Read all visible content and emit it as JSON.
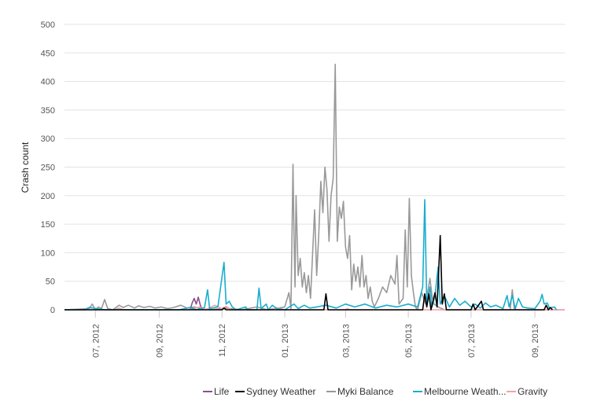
{
  "chart_data": {
    "type": "line",
    "title": "",
    "xlabel": "",
    "ylabel": "Crash count",
    "ylim": [
      0,
      500
    ],
    "y_ticks": [
      0,
      50,
      100,
      150,
      200,
      250,
      300,
      350,
      400,
      450,
      500
    ],
    "x_ticks": [
      "07, 2012",
      "09, 2012",
      "11, 2012",
      "01, 2013",
      "03, 2013",
      "05, 2013",
      "07, 2013",
      "09, 2013"
    ],
    "xlim": [
      "2012-06-01",
      "2013-09-30"
    ],
    "grid": "horizontal",
    "legend_position": "bottom-right",
    "series": [
      {
        "name": "Life",
        "color": "#8e4e8c",
        "points": [
          [
            "2012-10-01",
            0
          ],
          [
            "2012-10-03",
            12
          ],
          [
            "2012-10-05",
            20
          ],
          [
            "2012-10-07",
            10
          ],
          [
            "2012-10-09",
            22
          ],
          [
            "2012-10-11",
            8
          ],
          [
            "2012-10-13",
            0
          ]
        ]
      },
      {
        "name": "Sydney Weather",
        "color": "#000000",
        "points": [
          [
            "2012-06-01",
            0
          ],
          [
            "2012-11-01",
            0
          ],
          [
            "2012-11-03",
            3
          ],
          [
            "2012-11-05",
            0
          ],
          [
            "2013-02-08",
            0
          ],
          [
            "2013-02-10",
            28
          ],
          [
            "2013-02-12",
            0
          ],
          [
            "2013-05-15",
            0
          ],
          [
            "2013-05-17",
            28
          ],
          [
            "2013-05-19",
            5
          ],
          [
            "2013-05-21",
            28
          ],
          [
            "2013-05-23",
            0
          ],
          [
            "2013-05-27",
            30
          ],
          [
            "2013-05-29",
            5
          ],
          [
            "2013-06-01",
            130
          ],
          [
            "2013-06-03",
            10
          ],
          [
            "2013-06-05",
            28
          ],
          [
            "2013-06-07",
            0
          ],
          [
            "2013-07-01",
            0
          ],
          [
            "2013-07-03",
            10
          ],
          [
            "2013-07-05",
            0
          ],
          [
            "2013-07-11",
            15
          ],
          [
            "2013-07-13",
            0
          ],
          [
            "2013-09-10",
            0
          ],
          [
            "2013-09-12",
            8
          ],
          [
            "2013-09-14",
            0
          ],
          [
            "2013-09-16",
            4
          ],
          [
            "2013-09-18",
            0
          ]
        ]
      },
      {
        "name": "Myki Balance",
        "color": "#999999",
        "points": [
          [
            "2012-06-01",
            0
          ],
          [
            "2012-06-25",
            2
          ],
          [
            "2012-06-28",
            10
          ],
          [
            "2012-07-01",
            0
          ],
          [
            "2012-07-04",
            5
          ],
          [
            "2012-07-07",
            2
          ],
          [
            "2012-07-10",
            18
          ],
          [
            "2012-07-13",
            2
          ],
          [
            "2012-07-18",
            0
          ],
          [
            "2012-07-24",
            8
          ],
          [
            "2012-07-28",
            4
          ],
          [
            "2012-08-02",
            8
          ],
          [
            "2012-08-08",
            3
          ],
          [
            "2012-08-12",
            7
          ],
          [
            "2012-08-17",
            4
          ],
          [
            "2012-08-23",
            6
          ],
          [
            "2012-08-28",
            3
          ],
          [
            "2012-09-03",
            5
          ],
          [
            "2012-09-09",
            2
          ],
          [
            "2012-09-15",
            4
          ],
          [
            "2012-09-22",
            8
          ],
          [
            "2012-09-28",
            3
          ],
          [
            "2012-10-05",
            5
          ],
          [
            "2012-10-12",
            2
          ],
          [
            "2012-10-20",
            0
          ],
          [
            "2012-11-05",
            3
          ],
          [
            "2012-11-20",
            0
          ],
          [
            "2012-12-05",
            5
          ],
          [
            "2012-12-15",
            0
          ],
          [
            "2013-01-01",
            5
          ],
          [
            "2013-01-05",
            30
          ],
          [
            "2013-01-07",
            2
          ],
          [
            "2013-01-09",
            255
          ],
          [
            "2013-01-10",
            130
          ],
          [
            "2013-01-11",
            40
          ],
          [
            "2013-01-12",
            200
          ],
          [
            "2013-01-14",
            60
          ],
          [
            "2013-01-16",
            90
          ],
          [
            "2013-01-18",
            40
          ],
          [
            "2013-01-20",
            65
          ],
          [
            "2013-01-22",
            30
          ],
          [
            "2013-01-24",
            60
          ],
          [
            "2013-01-26",
            20
          ],
          [
            "2013-01-30",
            175
          ],
          [
            "2013-02-01",
            60
          ],
          [
            "2013-02-03",
            130
          ],
          [
            "2013-02-05",
            225
          ],
          [
            "2013-02-07",
            170
          ],
          [
            "2013-02-09",
            250
          ],
          [
            "2013-02-11",
            210
          ],
          [
            "2013-02-13",
            120
          ],
          [
            "2013-02-15",
            200
          ],
          [
            "2013-02-17",
            230
          ],
          [
            "2013-02-19",
            430
          ],
          [
            "2013-02-21",
            120
          ],
          [
            "2013-02-23",
            180
          ],
          [
            "2013-02-25",
            160
          ],
          [
            "2013-02-27",
            190
          ],
          [
            "2013-03-01",
            110
          ],
          [
            "2013-03-03",
            90
          ],
          [
            "2013-03-05",
            130
          ],
          [
            "2013-03-07",
            35
          ],
          [
            "2013-03-09",
            80
          ],
          [
            "2013-03-11",
            50
          ],
          [
            "2013-03-13",
            75
          ],
          [
            "2013-03-15",
            40
          ],
          [
            "2013-03-17",
            95
          ],
          [
            "2013-03-19",
            40
          ],
          [
            "2013-03-21",
            60
          ],
          [
            "2013-03-23",
            20
          ],
          [
            "2013-03-25",
            40
          ],
          [
            "2013-03-27",
            15
          ],
          [
            "2013-03-29",
            5
          ],
          [
            "2013-04-02",
            20
          ],
          [
            "2013-04-06",
            40
          ],
          [
            "2013-04-10",
            30
          ],
          [
            "2013-04-14",
            60
          ],
          [
            "2013-04-18",
            45
          ],
          [
            "2013-04-20",
            95
          ],
          [
            "2013-04-22",
            10
          ],
          [
            "2013-04-26",
            20
          ],
          [
            "2013-04-28",
            140
          ],
          [
            "2013-04-30",
            40
          ],
          [
            "2013-05-02",
            195
          ],
          [
            "2013-05-04",
            60
          ],
          [
            "2013-05-06",
            30
          ],
          [
            "2013-05-08",
            5
          ],
          [
            "2013-05-10",
            0
          ],
          [
            "2013-05-14",
            30
          ],
          [
            "2013-05-18",
            10
          ],
          [
            "2013-05-22",
            55
          ],
          [
            "2013-05-24",
            25
          ],
          [
            "2013-05-26",
            10
          ],
          [
            "2013-05-30",
            5
          ],
          [
            "2013-06-05",
            0
          ],
          [
            "2013-08-08",
            0
          ],
          [
            "2013-08-10",
            35
          ],
          [
            "2013-08-12",
            0
          ],
          [
            "2013-09-30",
            0
          ]
        ]
      },
      {
        "name": "Melbourne Weath...",
        "color": "#1aadce",
        "points": [
          [
            "2012-06-01",
            0
          ],
          [
            "2012-06-20",
            0
          ],
          [
            "2012-06-25",
            4
          ],
          [
            "2012-07-10",
            0
          ],
          [
            "2012-09-20",
            0
          ],
          [
            "2012-10-01",
            4
          ],
          [
            "2012-10-07",
            0
          ],
          [
            "2012-10-15",
            4
          ],
          [
            "2012-10-18",
            35
          ],
          [
            "2012-10-20",
            2
          ],
          [
            "2012-10-28",
            5
          ],
          [
            "2012-11-03",
            83
          ],
          [
            "2012-11-05",
            10
          ],
          [
            "2012-11-08",
            15
          ],
          [
            "2012-11-11",
            5
          ],
          [
            "2012-11-15",
            0
          ],
          [
            "2012-11-24",
            5
          ],
          [
            "2012-11-26",
            0
          ],
          [
            "2012-12-05",
            0
          ],
          [
            "2012-12-07",
            38
          ],
          [
            "2012-12-09",
            2
          ],
          [
            "2012-12-14",
            10
          ],
          [
            "2012-12-16",
            0
          ],
          [
            "2012-12-20",
            8
          ],
          [
            "2012-12-24",
            2
          ],
          [
            "2013-01-01",
            0
          ],
          [
            "2013-01-10",
            10
          ],
          [
            "2013-01-14",
            2
          ],
          [
            "2013-01-20",
            8
          ],
          [
            "2013-01-25",
            3
          ],
          [
            "2013-02-01",
            5
          ],
          [
            "2013-02-10",
            8
          ],
          [
            "2013-02-20",
            3
          ],
          [
            "2013-03-01",
            10
          ],
          [
            "2013-03-10",
            5
          ],
          [
            "2013-03-20",
            10
          ],
          [
            "2013-03-30",
            3
          ],
          [
            "2013-04-10",
            8
          ],
          [
            "2013-04-20",
            5
          ],
          [
            "2013-05-01",
            10
          ],
          [
            "2013-05-10",
            5
          ],
          [
            "2013-05-15",
            40
          ],
          [
            "2013-05-17",
            193
          ],
          [
            "2013-05-19",
            10
          ],
          [
            "2013-05-22",
            40
          ],
          [
            "2013-05-24",
            5
          ],
          [
            "2013-05-27",
            25
          ],
          [
            "2013-05-30",
            75
          ],
          [
            "2013-06-01",
            10
          ],
          [
            "2013-06-05",
            25
          ],
          [
            "2013-06-10",
            5
          ],
          [
            "2013-06-15",
            20
          ],
          [
            "2013-06-20",
            8
          ],
          [
            "2013-06-25",
            15
          ],
          [
            "2013-07-01",
            5
          ],
          [
            "2013-07-05",
            10
          ],
          [
            "2013-07-10",
            3
          ],
          [
            "2013-07-15",
            12
          ],
          [
            "2013-07-20",
            5
          ],
          [
            "2013-07-25",
            8
          ],
          [
            "2013-08-01",
            2
          ],
          [
            "2013-08-05",
            25
          ],
          [
            "2013-08-07",
            5
          ],
          [
            "2013-08-10",
            25
          ],
          [
            "2013-08-13",
            2
          ],
          [
            "2013-08-16",
            20
          ],
          [
            "2013-08-20",
            5
          ],
          [
            "2013-08-25",
            3
          ],
          [
            "2013-09-01",
            2
          ],
          [
            "2013-09-06",
            15
          ],
          [
            "2013-09-08",
            27
          ],
          [
            "2013-09-10",
            10
          ],
          [
            "2013-09-13",
            12
          ],
          [
            "2013-09-15",
            3
          ],
          [
            "2013-09-20",
            5
          ],
          [
            "2013-09-22",
            0
          ]
        ]
      },
      {
        "name": "Gravity",
        "color": "#f4a1a8",
        "points": [
          [
            "2012-06-01",
            0
          ],
          [
            "2012-07-20",
            0
          ],
          [
            "2012-07-24",
            3
          ],
          [
            "2012-07-28",
            0
          ],
          [
            "2012-10-01",
            0
          ],
          [
            "2012-10-10",
            5
          ],
          [
            "2012-10-16",
            0
          ],
          [
            "2012-10-25",
            8
          ],
          [
            "2012-11-01",
            2
          ],
          [
            "2012-11-05",
            6
          ],
          [
            "2012-11-10",
            0
          ],
          [
            "2012-12-20",
            0
          ],
          [
            "2012-12-24",
            4
          ],
          [
            "2013-01-01",
            0
          ],
          [
            "2013-03-01",
            0
          ],
          [
            "2013-03-03",
            2
          ],
          [
            "2013-03-05",
            0
          ],
          [
            "2013-09-30",
            0
          ]
        ]
      }
    ]
  }
}
